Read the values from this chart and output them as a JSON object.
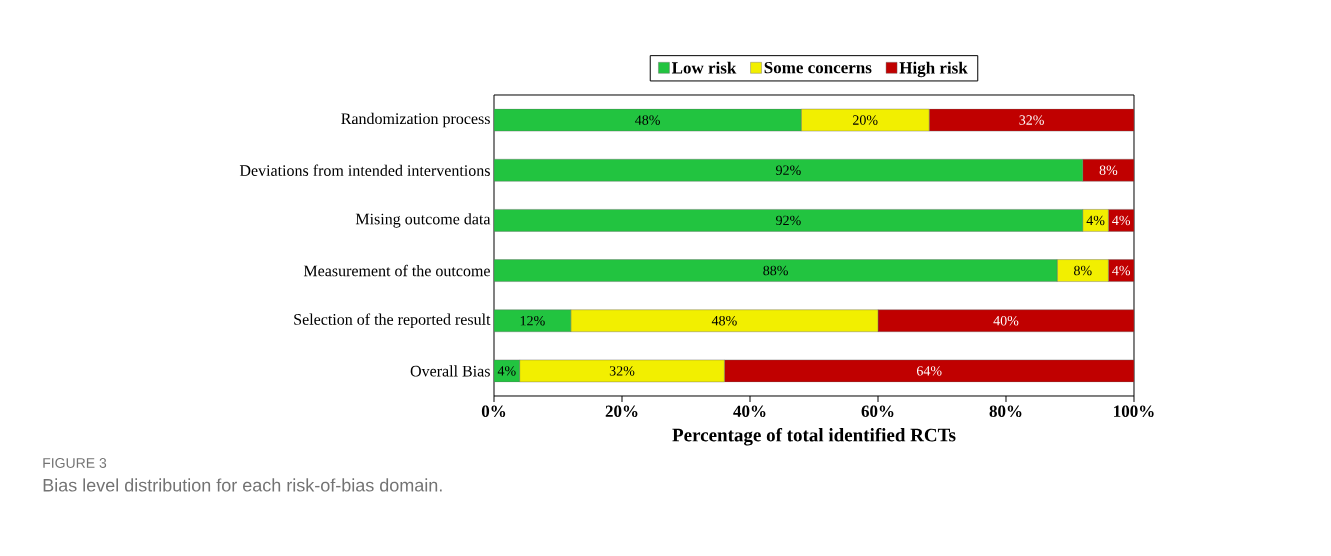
{
  "chart_data": {
    "type": "bar",
    "orientation": "horizontal",
    "stacked": true,
    "categories": [
      "Randomization process",
      "Deviations from intended interventions",
      "Mising outcome data",
      "Measurement of the outcome",
      "Selection of the reported result",
      "Overall Bias"
    ],
    "series": [
      {
        "name": "Low risk",
        "color": "#22c440",
        "values": [
          48,
          92,
          92,
          88,
          12,
          4
        ],
        "value_labels": [
          "48%",
          "92%",
          "92%",
          "88%",
          "12%",
          "4%"
        ]
      },
      {
        "name": "Some concerns",
        "color": "#f2ef00",
        "values": [
          20,
          0,
          4,
          8,
          48,
          32
        ],
        "value_labels": [
          "20%",
          null,
          "4%",
          "8%",
          "48%",
          "32%"
        ]
      },
      {
        "name": "High risk",
        "color": "#c00000",
        "values": [
          32,
          8,
          4,
          4,
          40,
          64
        ],
        "value_labels": [
          "32%",
          "8%",
          "4%",
          "4%",
          "40%",
          "64%"
        ]
      }
    ],
    "xlim": [
      0,
      100
    ],
    "xticks": [
      {
        "value": 0,
        "label": "0%"
      },
      {
        "value": 20,
        "label": "20%"
      },
      {
        "value": 40,
        "label": "40%"
      },
      {
        "value": 60,
        "label": "60%"
      },
      {
        "value": 80,
        "label": "80%"
      },
      {
        "value": 100,
        "label": "100%"
      }
    ],
    "xlabel": "Percentage of total identified RCTs",
    "legend": "top",
    "annotations": [
      "FIGURE 3",
      "Bias level distribution for each risk-of-bias domain."
    ]
  }
}
